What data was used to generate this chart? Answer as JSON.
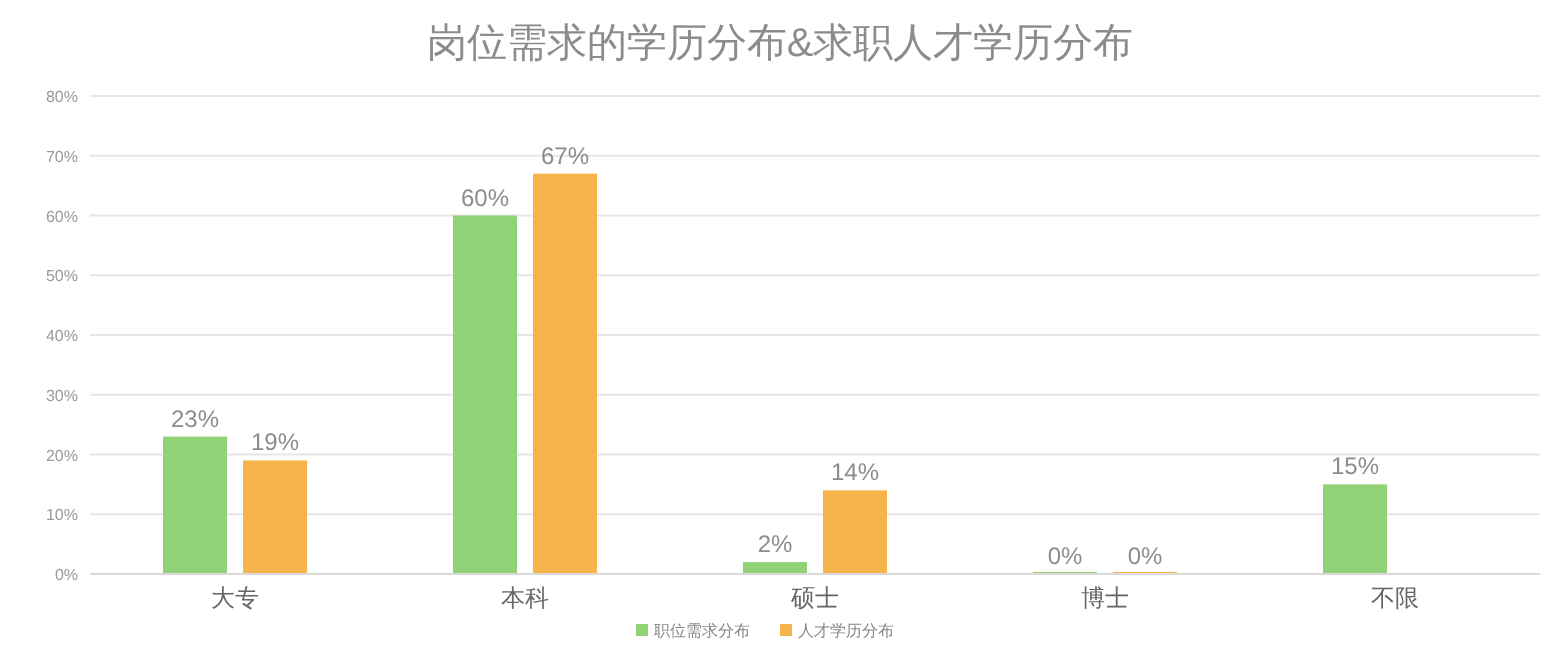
{
  "chart_data": {
    "type": "bar",
    "title": "岗位需求的学历分布&求职人才学历分布",
    "categories": [
      "大专",
      "本科",
      "硕士",
      "博士",
      "不限"
    ],
    "series": [
      {
        "name": "职位需求分布",
        "color": "#92d277",
        "values": [
          23,
          60,
          2,
          0,
          15
        ],
        "value_labels": [
          "23%",
          "60%",
          "2%",
          "0%",
          "15%"
        ]
      },
      {
        "name": "人才学历分布",
        "color": "#f5b54a",
        "values": [
          19,
          67,
          14,
          0,
          null
        ],
        "value_labels": [
          "19%",
          "67%",
          "14%",
          "0%",
          null
        ]
      }
    ],
    "ylim": [
      0,
      80
    ],
    "yticks": [
      {
        "value": 0,
        "label": "0%"
      },
      {
        "value": 10,
        "label": "10%"
      },
      {
        "value": 20,
        "label": "20%"
      },
      {
        "value": 30,
        "label": "30%"
      },
      {
        "value": 40,
        "label": "40%"
      },
      {
        "value": 50,
        "label": "50%"
      },
      {
        "value": 60,
        "label": "60%"
      },
      {
        "value": 70,
        "label": "70%"
      },
      {
        "value": 80,
        "label": "80%"
      }
    ],
    "grid": "y",
    "legend": "bottom"
  }
}
